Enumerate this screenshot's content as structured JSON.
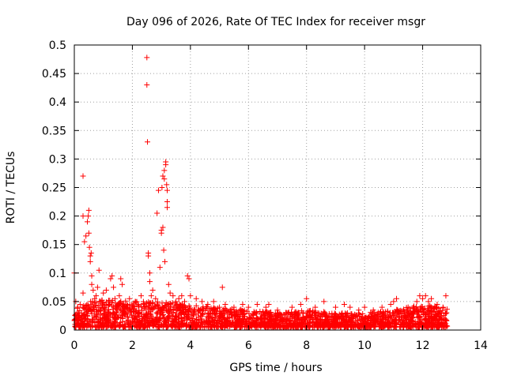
{
  "chart_data": {
    "type": "scatter",
    "title": "Day 096 of 2026, Rate Of TEC Index for receiver msgr",
    "xlabel": "GPS time / hours",
    "ylabel": "ROTI / TECUs",
    "xlim": [
      0,
      14
    ],
    "ylim": [
      0,
      0.5
    ],
    "x_ticks": [
      0,
      2,
      4,
      6,
      8,
      10,
      12,
      14
    ],
    "x_tick_labels": [
      "0",
      "2",
      "4",
      "6",
      "8",
      "10",
      "12",
      "14"
    ],
    "y_ticks": [
      0,
      0.05,
      0.1,
      0.15,
      0.2,
      0.25,
      0.3,
      0.35,
      0.4,
      0.45,
      0.5
    ],
    "y_tick_labels": [
      "0",
      "0.05",
      "0.1",
      "0.15",
      "0.2",
      "0.25",
      "0.3",
      "0.35",
      "0.4",
      "0.45",
      "0.5"
    ],
    "grid": true,
    "marker": "plus",
    "color": "#ff0000",
    "series": [
      {
        "name": "ROTI",
        "points": [
          [
            0.0,
            0.1
          ],
          [
            0.05,
            0.05
          ],
          [
            0.1,
            0.03
          ],
          [
            0.12,
            0.04
          ],
          [
            0.15,
            0.03
          ],
          [
            0.2,
            0.045
          ],
          [
            0.25,
            0.03
          ],
          [
            0.3,
            0.065
          ],
          [
            0.3,
            0.27
          ],
          [
            0.3,
            0.2
          ],
          [
            0.35,
            0.155
          ],
          [
            0.4,
            0.165
          ],
          [
            0.45,
            0.19
          ],
          [
            0.48,
            0.2
          ],
          [
            0.5,
            0.21
          ],
          [
            0.5,
            0.17
          ],
          [
            0.52,
            0.145
          ],
          [
            0.55,
            0.13
          ],
          [
            0.55,
            0.12
          ],
          [
            0.58,
            0.135
          ],
          [
            0.6,
            0.095
          ],
          [
            0.6,
            0.08
          ],
          [
            0.65,
            0.07
          ],
          [
            0.7,
            0.055
          ],
          [
            0.75,
            0.06
          ],
          [
            0.8,
            0.075
          ],
          [
            0.85,
            0.105
          ],
          [
            0.9,
            0.05
          ],
          [
            1.0,
            0.065
          ],
          [
            1.05,
            0.04
          ],
          [
            1.1,
            0.07
          ],
          [
            1.2,
            0.045
          ],
          [
            1.25,
            0.09
          ],
          [
            1.3,
            0.095
          ],
          [
            1.35,
            0.075
          ],
          [
            1.4,
            0.055
          ],
          [
            1.5,
            0.045
          ],
          [
            1.55,
            0.06
          ],
          [
            1.6,
            0.09
          ],
          [
            1.65,
            0.08
          ],
          [
            1.7,
            0.045
          ],
          [
            1.8,
            0.04
          ],
          [
            1.9,
            0.055
          ],
          [
            2.0,
            0.04
          ],
          [
            2.1,
            0.05
          ],
          [
            2.2,
            0.045
          ],
          [
            2.3,
            0.06
          ],
          [
            2.5,
            0.478
          ],
          [
            2.5,
            0.43
          ],
          [
            2.52,
            0.33
          ],
          [
            2.55,
            0.135
          ],
          [
            2.55,
            0.13
          ],
          [
            2.6,
            0.1
          ],
          [
            2.6,
            0.085
          ],
          [
            2.65,
            0.06
          ],
          [
            2.7,
            0.07
          ],
          [
            2.8,
            0.055
          ],
          [
            2.85,
            0.205
          ],
          [
            2.9,
            0.245
          ],
          [
            2.95,
            0.11
          ],
          [
            3.0,
            0.175
          ],
          [
            3.0,
            0.17
          ],
          [
            3.02,
            0.25
          ],
          [
            3.05,
            0.27
          ],
          [
            3.05,
            0.18
          ],
          [
            3.08,
            0.14
          ],
          [
            3.1,
            0.28
          ],
          [
            3.1,
            0.265
          ],
          [
            3.12,
            0.12
          ],
          [
            3.15,
            0.295
          ],
          [
            3.15,
            0.29
          ],
          [
            3.18,
            0.255
          ],
          [
            3.2,
            0.245
          ],
          [
            3.2,
            0.225
          ],
          [
            3.2,
            0.215
          ],
          [
            3.25,
            0.08
          ],
          [
            3.3,
            0.065
          ],
          [
            3.4,
            0.06
          ],
          [
            3.5,
            0.05
          ],
          [
            3.6,
            0.055
          ],
          [
            3.7,
            0.06
          ],
          [
            3.8,
            0.05
          ],
          [
            3.9,
            0.095
          ],
          [
            3.95,
            0.09
          ],
          [
            4.0,
            0.06
          ],
          [
            4.2,
            0.055
          ],
          [
            4.4,
            0.05
          ],
          [
            4.6,
            0.045
          ],
          [
            4.8,
            0.05
          ],
          [
            5.0,
            0.04
          ],
          [
            5.1,
            0.075
          ],
          [
            5.2,
            0.045
          ],
          [
            5.5,
            0.04
          ],
          [
            5.8,
            0.045
          ],
          [
            6.0,
            0.04
          ],
          [
            6.3,
            0.045
          ],
          [
            6.6,
            0.04
          ],
          [
            6.7,
            0.045
          ],
          [
            7.0,
            0.035
          ],
          [
            7.5,
            0.04
          ],
          [
            7.8,
            0.045
          ],
          [
            8.0,
            0.055
          ],
          [
            8.3,
            0.04
          ],
          [
            8.6,
            0.05
          ],
          [
            9.0,
            0.04
          ],
          [
            9.3,
            0.045
          ],
          [
            9.5,
            0.04
          ],
          [
            9.8,
            0.035
          ],
          [
            10.0,
            0.04
          ],
          [
            10.3,
            0.035
          ],
          [
            10.6,
            0.04
          ],
          [
            10.9,
            0.045
          ],
          [
            11.0,
            0.05
          ],
          [
            11.1,
            0.055
          ],
          [
            11.5,
            0.04
          ],
          [
            11.8,
            0.05
          ],
          [
            11.9,
            0.06
          ],
          [
            12.0,
            0.055
          ],
          [
            12.1,
            0.06
          ],
          [
            12.2,
            0.05
          ],
          [
            12.3,
            0.055
          ],
          [
            12.5,
            0.045
          ],
          [
            12.7,
            0.04
          ],
          [
            12.8,
            0.06
          ]
        ],
        "dense_band": {
          "x_range": [
            0,
            12.85
          ],
          "y_floor": 0.005,
          "y_upper_profile": [
            [
              0,
              0.045
            ],
            [
              1,
              0.055
            ],
            [
              2,
              0.05
            ],
            [
              3,
              0.05
            ],
            [
              4,
              0.045
            ],
            [
              5,
              0.04
            ],
            [
              6,
              0.035
            ],
            [
              7,
              0.03
            ],
            [
              8,
              0.035
            ],
            [
              9,
              0.03
            ],
            [
              10,
              0.03
            ],
            [
              11,
              0.035
            ],
            [
              12,
              0.045
            ],
            [
              12.85,
              0.04
            ]
          ],
          "approx_count": 2400
        }
      }
    ]
  }
}
